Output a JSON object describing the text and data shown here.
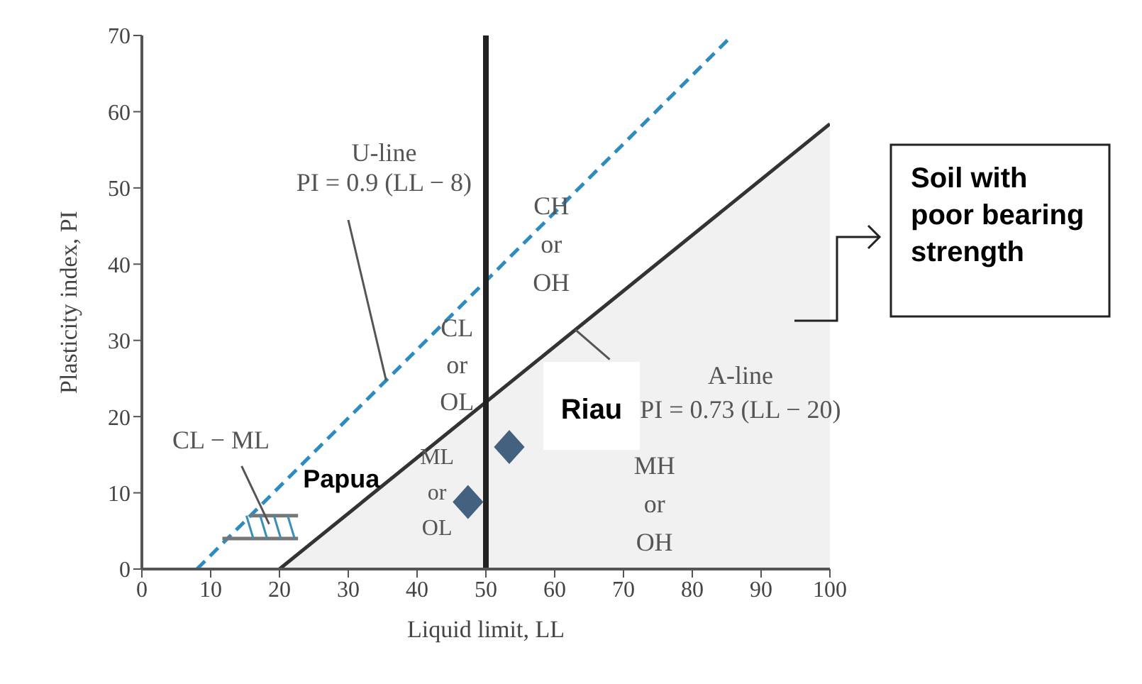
{
  "chart_data": {
    "type": "line",
    "xlabel": "Liquid limit, LL",
    "ylabel": "Plasticity index, PI",
    "xlim": [
      0,
      100
    ],
    "ylim": [
      0,
      70
    ],
    "xticks": [
      0,
      10,
      20,
      30,
      40,
      50,
      60,
      70,
      80,
      90,
      100
    ],
    "yticks": [
      0,
      10,
      20,
      30,
      40,
      50,
      60,
      70
    ],
    "legend": false,
    "series": [
      {
        "color": "#2e8bc0",
        "line_style": "dashed",
        "marker": "none",
        "x": [
          8,
          85.8
        ],
        "values": [
          0,
          70
        ]
      },
      {
        "type": "area",
        "color": "#333333",
        "line_style": "solid",
        "x": [
          20,
          100
        ],
        "values": [
          0,
          58.4
        ]
      },
      {
        "type": "line",
        "color": "#777777",
        "line_style": "solid",
        "marker": "none",
        "x": [
          11.7,
          22.7
        ],
        "values": [
          4,
          4
        ]
      },
      {
        "type": "line",
        "color": "#777777",
        "line_style": "solid",
        "marker": "none",
        "x": [
          15.8,
          22.7
        ],
        "values": [
          7,
          7
        ]
      },
      {
        "type": "scatter",
        "name": "Papua",
        "color": "#44617f",
        "marker": "diamond",
        "x": [
          47.4
        ],
        "values": [
          8.8
        ]
      },
      {
        "type": "scatter",
        "name": "Riau",
        "color": "#44617f",
        "marker": "diamond",
        "x": [
          53.4
        ],
        "values": [
          16
        ]
      }
    ],
    "ref_lines": [
      {
        "axis": "x",
        "value": 50,
        "color": "#222222"
      }
    ],
    "annotations": [
      {
        "text": "U-line\nPI = 0.9 (LL − 8)",
        "x": 35.5,
        "y": 24.75
      },
      {
        "text": "A-line\nPI = 0.73 (LL − 20)",
        "x": 63,
        "y": 31.4
      },
      "CH\nor\nOH",
      "CL\nor\nOL",
      "ML\nor\nOL",
      "MH\nor\nOH",
      "CL − ML",
      "Soil with\npoor bearing\nstrength"
    ]
  }
}
